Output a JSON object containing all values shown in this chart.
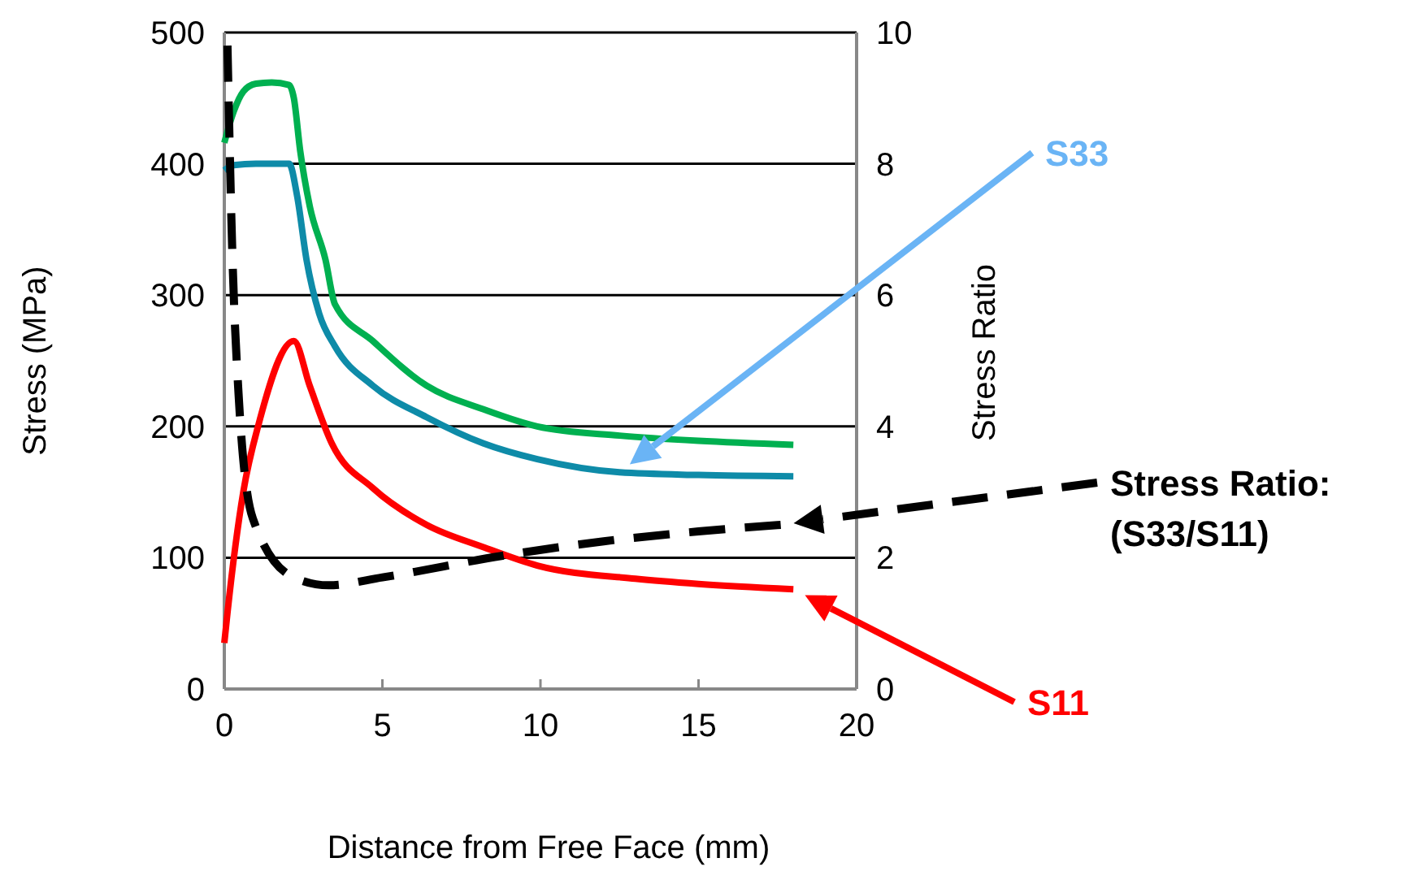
{
  "chart_data": {
    "type": "line",
    "xlabel": "Distance from Free Face (mm)",
    "ylabel": "Stress (MPa)",
    "y2label": "Stress Ratio",
    "xlim": [
      0,
      20
    ],
    "xticks": [
      0,
      5,
      10,
      15,
      20
    ],
    "ylim": [
      0,
      500
    ],
    "yticks": [
      0,
      100,
      200,
      300,
      400,
      500
    ],
    "y2lim": [
      0,
      10
    ],
    "y2ticks": [
      0,
      2,
      4,
      6,
      8,
      10
    ],
    "grid": "y",
    "line_style": "solid",
    "marker": "none",
    "series": [
      {
        "color": "#00b050",
        "x": [
          0,
          0.3,
          0.6,
          1.0,
          1.5,
          2.05,
          2.2,
          2.4,
          2.7,
          3.2,
          3.5,
          4.7,
          6.4,
          8.2,
          9.9,
          12.5,
          15,
          18
        ],
        "values": [
          416,
          440,
          455,
          461,
          462,
          460,
          450,
          410,
          368,
          327,
          293,
          265,
          231,
          213,
          200,
          193,
          189,
          186
        ]
      },
      {
        "name": "S33",
        "color": "#0e8ba8",
        "x": [
          0,
          0.3,
          1.0,
          2.05,
          2.3,
          2.6,
          3.0,
          3.5,
          4.7,
          6.4,
          8.2,
          9.9,
          12.5,
          15,
          18
        ],
        "values": [
          395,
          399,
          400,
          400,
          376,
          327,
          286,
          261,
          231,
          207,
          187,
          175,
          165,
          163,
          162
        ]
      },
      {
        "name": "S11",
        "color": "#ff0000",
        "x": [
          0,
          0.1,
          0.6,
          1.1,
          2.2,
          2.7,
          3.4,
          4.7,
          6.4,
          8.2,
          9.9,
          13,
          15,
          18
        ],
        "values": [
          35,
          58,
          150,
          203,
          265,
          231,
          187,
          153,
          125,
          108,
          94,
          84,
          80,
          76
        ]
      },
      {
        "name": "Stress Ratio: (S33/S11)",
        "color": "#000000",
        "axis": "y2",
        "line_style": "dashed",
        "x": [
          0.1,
          0.25,
          0.45,
          0.9,
          2.2,
          3.3,
          5,
          8.8,
          12,
          15,
          17.6
        ],
        "values": [
          9.8,
          6.7,
          4.5,
          2.6,
          1.7,
          1.58,
          1.7,
          2.03,
          2.25,
          2.4,
          2.5
        ]
      }
    ]
  }
}
